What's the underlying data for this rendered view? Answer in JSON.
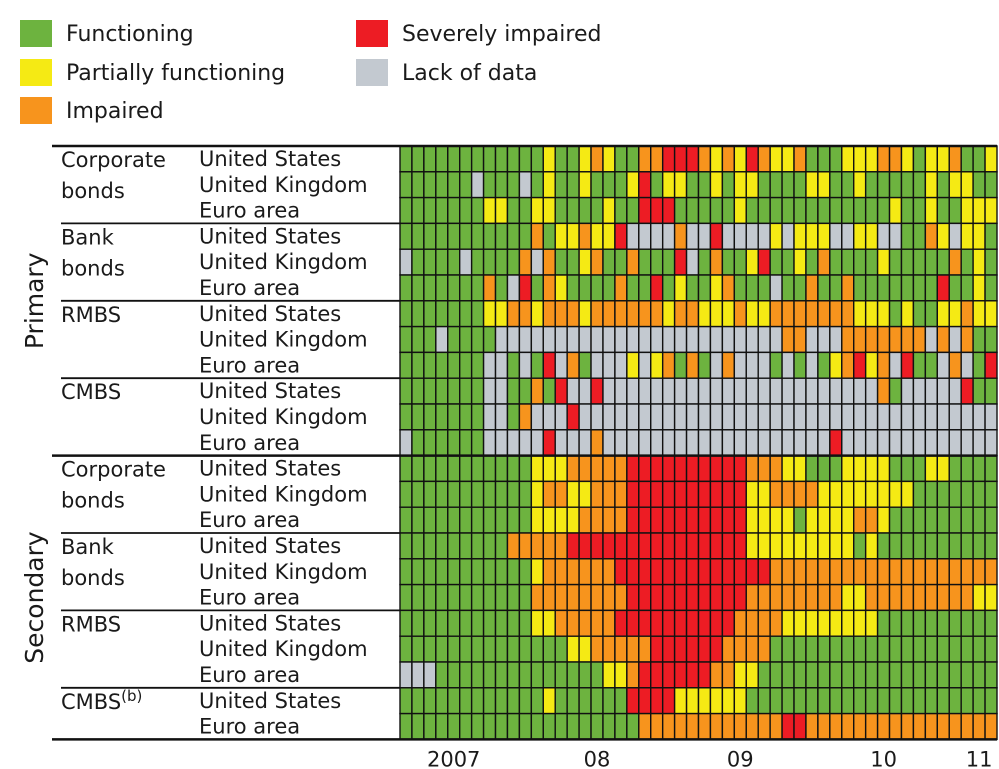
{
  "chart_data": {
    "type": "heatmap",
    "legend": [
      {
        "key": "F",
        "label": "Functioning",
        "color": "#6db33f"
      },
      {
        "key": "P",
        "label": "Partially functioning",
        "color": "#f5ea14"
      },
      {
        "key": "I",
        "label": "Impaired",
        "color": "#f7941d"
      },
      {
        "key": "S",
        "label": "Severely impaired",
        "color": "#ed1c24"
      },
      {
        "key": "L",
        "label": "Lack of data",
        "color": "#c3c9d0"
      }
    ],
    "x_ticks": [
      {
        "label": "2007",
        "col": 4
      },
      {
        "label": "08",
        "col": 16
      },
      {
        "label": "09",
        "col": 28
      },
      {
        "label": "10",
        "col": 40
      },
      {
        "label": "11",
        "col": 48
      }
    ],
    "groups": [
      {
        "name": "Primary",
        "segments": [
          {
            "name": [
              "Corporate",
              "bonds"
            ],
            "rows": [
              {
                "region": "United States",
                "states": "FFFFFFFFFFFFPFFPIPFFIISSSIPIPSIPPIFFFPPPIIPFPPIFFP"
              },
              {
                "region": "United Kingdom",
                "states": "FFFFFFLFFFLFPFFPFFFPSFPPFFPFPPFFFFPPFFPFFFFFPFPPFF"
              },
              {
                "region": "Euro area",
                "states": "FFFFFFFPPFFPPFFFFPFFSSSFFFFFPFFFFFFFFFFFFPFFPFFPPP"
              }
            ]
          },
          {
            "name": [
              "Bank",
              "bonds"
            ],
            "rows": [
              {
                "region": "United States",
                "states": "FFFFFFFFFFFIFPPIPPSLLLLILLSLLLLPLPPPLLPPLLFFIPLPPF"
              },
              {
                "region": "United Kingdom",
                "states": "LFFFFLFFFFILIFFPIFFIFFFSLFIFFPSFFPFIFFFFPFFFFFIFPF"
              },
              {
                "region": "Euro area",
                "states": "FFFFFFFIFLSFIPFFFFIFFSFPFFPIFFFLFFIFFIFFFFFFFSFFPF"
              }
            ]
          },
          {
            "name": [
              "RMBS"
            ],
            "rows": [
              {
                "region": "United States",
                "states": "FFFFFFFPPIIPIIIPIIIIIIPIIPPPIPPIIIIIIIPPPFPFFPPIPP"
              },
              {
                "region": "United Kingdom",
                "states": "FFFLFFFFLLLLLLLLLLLLLLLLLLLLLLLLIILLLIIIIIIILILIFF"
              },
              {
                "region": "Euro area",
                "states": "FFFFFFFLLFLFSLIFLLLPLPIFIFLILLLFLFLFPISPILSFFLILFS"
              }
            ]
          },
          {
            "name": [
              "CMBS"
            ],
            "rows": [
              {
                "region": "United States",
                "states": "FFFFFFFLLFFIFSLLSLLLLLLLLLLLLLLLLLLLLLLLIFLLLLLSFF"
              },
              {
                "region": "United Kingdom",
                "states": "FFFFFFFLLFILLLSLLLLLLLLLLLLLLLLLLLLLLLLLLLLLLLLLLL"
              },
              {
                "region": "Euro area",
                "states": "LFFFFFFLLLLLSLLLILLLLLLLLLLLLLLLLLLLSLLLLLLLLLLLLL"
              }
            ]
          }
        ]
      },
      {
        "name": "Secondary",
        "segments": [
          {
            "name": [
              "Corporate",
              "bonds"
            ],
            "rows": [
              {
                "region": "United States",
                "states": "FFFFFFFFFFFPPPIIIIISSSSSSSSSSIIIPPFFFPPPPFFFPPFFFF"
              },
              {
                "region": "United Kingdom",
                "states": "FFFFFFFFFFFPIIPPIIISSSSSSSSSSPPIIIIPPPPPPPPFFFFFFF"
              },
              {
                "region": "Euro area",
                "states": "FFFFFFFFFFFPPPPIIIISSSSSSSSSSPPPPFPPPPIIPFFFFFFFFF"
              }
            ]
          },
          {
            "name": [
              "Bank",
              "bonds"
            ],
            "rows": [
              {
                "region": "United States",
                "states": "FFFFFFFFFIIIIISSSSSSSSSSSSSSSPPPPPPPPPFPFFFFFFFFFF"
              },
              {
                "region": "United Kingdom",
                "states": "FFFFFFFFFFFPIIIIIISSSSSSSSSSSSSIIIIIIIIIIIIIIIIIII"
              },
              {
                "region": "Euro area",
                "states": "FFFFFFFFFFFIIIIIIIISSSSSSSSSSIIIIIIIIPPIIIIIIIIIPP"
              }
            ]
          },
          {
            "name": [
              "RMBS"
            ],
            "rows": [
              {
                "region": "United States",
                "states": "FFFFFFFFFFFPPIIIIISSSSSSSSSSIIIIPPPPPPPPFFFFFFFFFF"
              },
              {
                "region": "United Kingdom",
                "states": "FFFFFFFFFFFFFFPPIIIIISSSSSSIIIIFFFFFFFFFFFFFFFFFFF"
              },
              {
                "region": "Euro area",
                "states": "LLLFFFFFFFFFFFFFFPPISSSSSSIIPPFFFFFFFFFFFFFFFFFFFF"
              }
            ]
          },
          {
            "name": [
              "CMBS(b)"
            ],
            "rows": [
              {
                "region": "United States",
                "states": "FFFFFFFFFFFFPFFFFFFSSSSPPPPPPFFFFFFFFFFFFFFFFFFFFF"
              },
              {
                "region": "Euro area",
                "states": "FFFFFFFFFFFFFFFFFFFFIIIIIIIIIIIISSIIIIIIIIIIIIIIII"
              }
            ]
          }
        ]
      }
    ]
  }
}
